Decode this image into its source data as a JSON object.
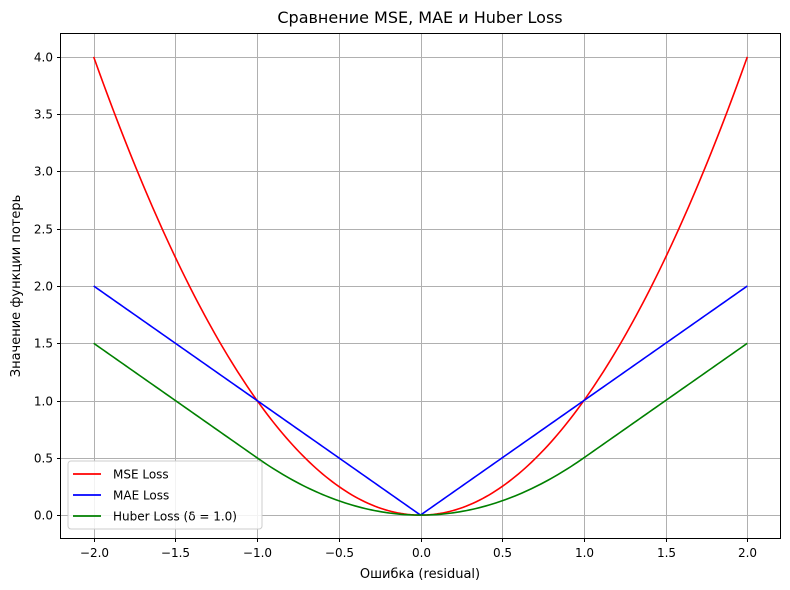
{
  "chart_data": {
    "type": "line",
    "title": "Сравнение MSE, MAE и Huber Loss",
    "xlabel": "Ошибка (residual)",
    "ylabel": "Значение функции потерь",
    "xlim": [
      -2.2,
      2.2
    ],
    "ylim": [
      -0.2,
      4.2
    ],
    "x_ticks": [
      -2.0,
      -1.5,
      -1.0,
      -0.5,
      0.0,
      0.5,
      1.0,
      1.5,
      2.0
    ],
    "x_tick_labels": [
      "−2.0",
      "−1.5",
      "−1.0",
      "−0.5",
      "0.0",
      "0.5",
      "1.0",
      "1.5",
      "2.0"
    ],
    "y_ticks": [
      0.0,
      0.5,
      1.0,
      1.5,
      2.0,
      2.5,
      3.0,
      3.5,
      4.0
    ],
    "y_tick_labels": [
      "0.0",
      "0.5",
      "1.0",
      "1.5",
      "2.0",
      "2.5",
      "3.0",
      "3.5",
      "4.0"
    ],
    "grid": true,
    "legend_position": "lower-left",
    "x": [
      -2.0,
      -1.75,
      -1.5,
      -1.25,
      -1.0,
      -0.75,
      -0.5,
      -0.25,
      0.0,
      0.25,
      0.5,
      0.75,
      1.0,
      1.25,
      1.5,
      1.75,
      2.0
    ],
    "series": [
      {
        "name": "MSE Loss",
        "color": "#ff0000",
        "values": [
          4.0,
          3.0625,
          2.25,
          1.5625,
          1.0,
          0.5625,
          0.25,
          0.0625,
          0.0,
          0.0625,
          0.25,
          0.5625,
          1.0,
          1.5625,
          2.25,
          3.0625,
          4.0
        ]
      },
      {
        "name": "MAE Loss",
        "color": "#0000ff",
        "values": [
          2.0,
          1.75,
          1.5,
          1.25,
          1.0,
          0.75,
          0.5,
          0.25,
          0.0,
          0.25,
          0.5,
          0.75,
          1.0,
          1.25,
          1.5,
          1.75,
          2.0
        ]
      },
      {
        "name": "Huber Loss (δ = 1.0)",
        "color": "#008000",
        "values": [
          1.5,
          1.25,
          1.0,
          0.75,
          0.5,
          0.28125,
          0.125,
          0.03125,
          0.0,
          0.03125,
          0.125,
          0.28125,
          0.5,
          0.75,
          1.0,
          1.25,
          1.5
        ]
      }
    ]
  }
}
